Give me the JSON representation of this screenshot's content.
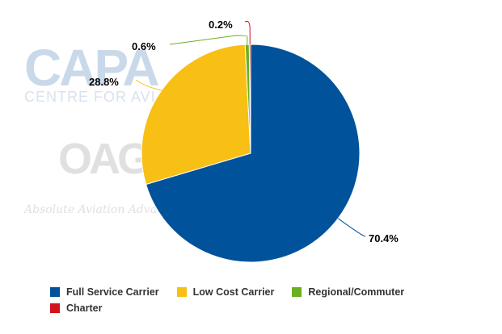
{
  "watermarks": {
    "capa": "CAPA",
    "capa_sub": "CENTRE FOR AVIA",
    "oag": "OAG",
    "oag_sub": "Absolute Aviation Adva"
  },
  "colors": {
    "full_service": "#00529b",
    "low_cost": "#f8bf14",
    "regional": "#6ab023",
    "charter": "#d2121c"
  },
  "chart_data": {
    "type": "pie",
    "title": "",
    "series": [
      {
        "name": "Full Service Carrier",
        "value": 70.4,
        "label": "70.4%",
        "color": "#00529b"
      },
      {
        "name": "Low Cost Carrier",
        "value": 28.8,
        "label": "28.8%",
        "color": "#f8bf14"
      },
      {
        "name": "Regional/Commuter",
        "value": 0.6,
        "label": "0.6%",
        "color": "#6ab023"
      },
      {
        "name": "Charter",
        "value": 0.2,
        "label": "0.2%",
        "color": "#d2121c"
      }
    ],
    "start_angle": "12 o'clock",
    "direction": "clockwise",
    "legend": "bottom"
  }
}
